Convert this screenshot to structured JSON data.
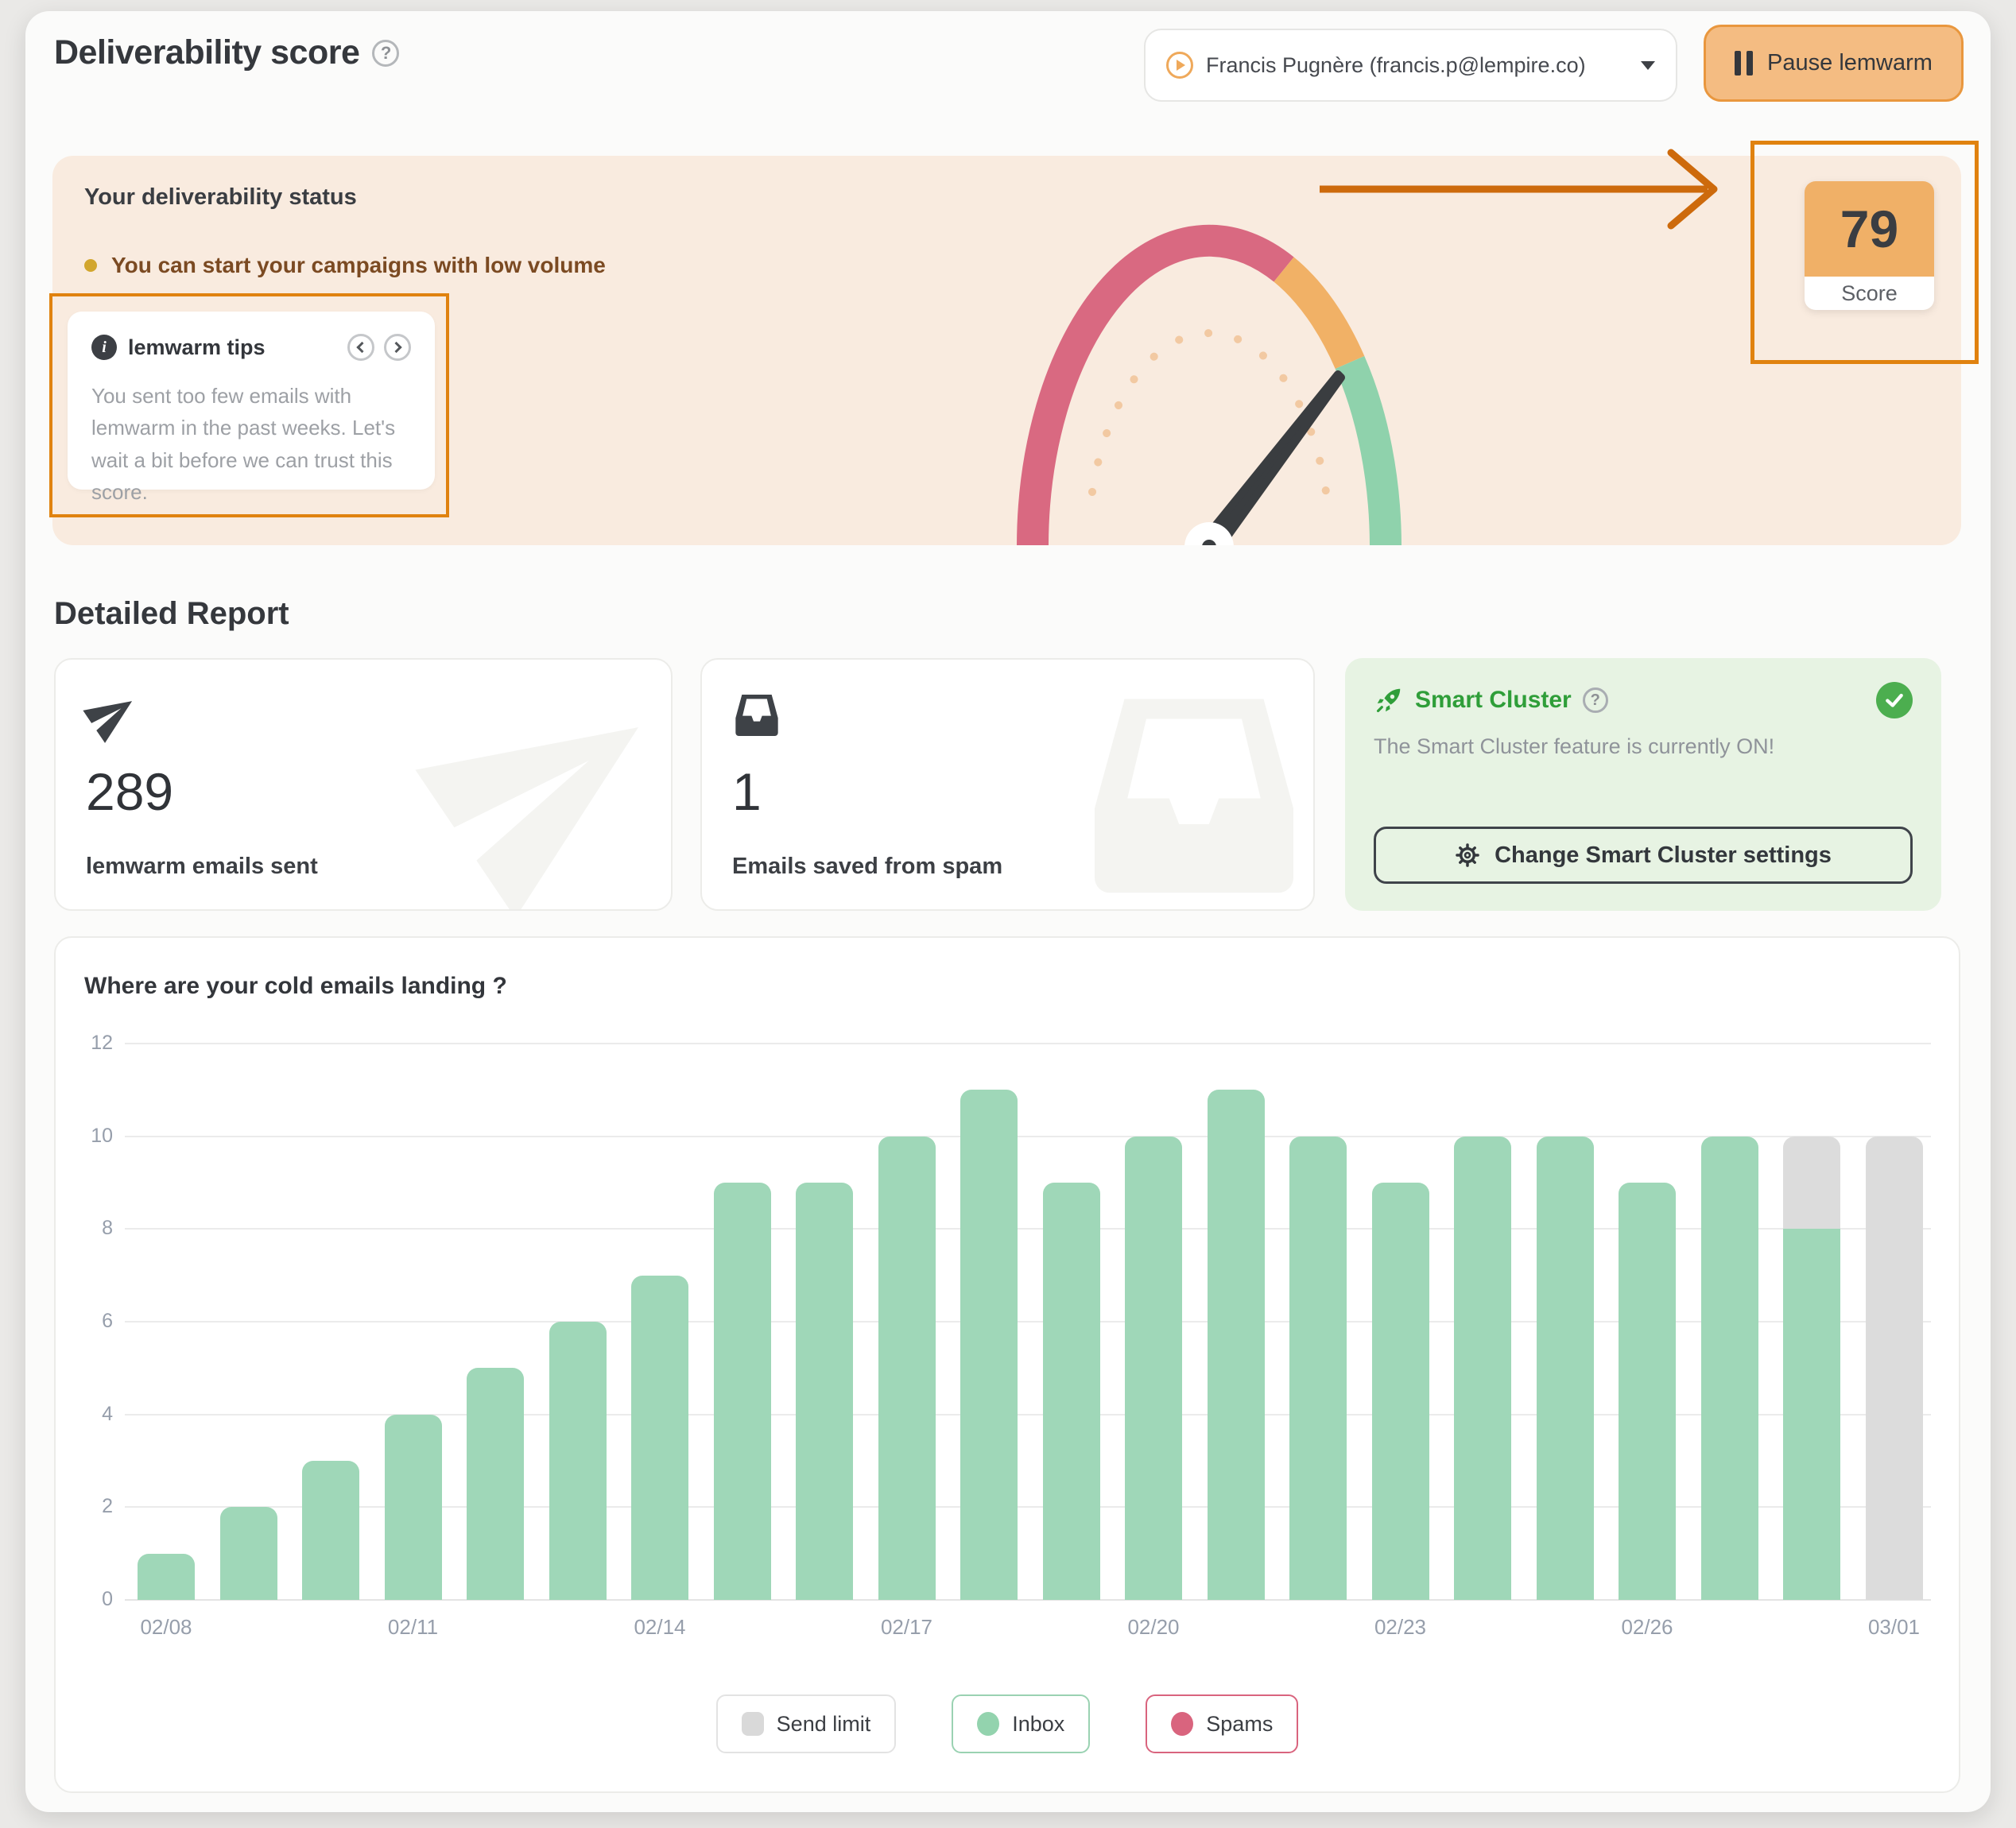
{
  "header": {
    "title": "Deliverability score",
    "account_label": "Francis Pugnère (francis.p@lempire.co)",
    "pause_label": "Pause lemwarm"
  },
  "status_banner": {
    "title": "Your deliverability status",
    "status_text": "You can start your campaigns with low volume",
    "status_dot_color": "#d2a62e",
    "tips": {
      "title": "lemwarm tips",
      "body": "You sent too few emails with lemwarm in the past weeks. Let's wait a bit before we can trust this score."
    },
    "gauge": {
      "score": "79",
      "score_label": "Score",
      "segment_colors": {
        "spam": "#d96981",
        "warning": "#f1b166",
        "good": "#8fd2ac"
      },
      "score_tile_color": "#f0b067"
    }
  },
  "detailed_report": {
    "title": "Detailed Report",
    "cards": [
      {
        "icon": "paper-plane",
        "value": "289",
        "label": "lemwarm emails sent"
      },
      {
        "icon": "inbox-tray",
        "value": "1",
        "label": "Emails saved from spam"
      }
    ],
    "smart_cluster": {
      "title": "Smart Cluster",
      "status_text": "The Smart Cluster feature is currently ON!",
      "button_label": "Change Smart Cluster settings",
      "accent_color": "#2f9e39"
    }
  },
  "chart_data": {
    "type": "bar",
    "stacked": true,
    "title": "Where are your cold emails landing ?",
    "categories": [
      "02/08",
      "02/09",
      "02/10",
      "02/11",
      "02/12",
      "02/13",
      "02/14",
      "02/15",
      "02/16",
      "02/17",
      "02/18",
      "02/19",
      "02/20",
      "02/21",
      "02/22",
      "02/23",
      "02/24",
      "02/25",
      "02/26",
      "02/27",
      "02/28",
      "03/01"
    ],
    "x_tick_labels": [
      "02/08",
      "02/11",
      "02/14",
      "02/17",
      "02/20",
      "02/23",
      "02/26",
      "03/01"
    ],
    "series": [
      {
        "name": "Inbox",
        "color": "#9fd7b8",
        "values": [
          1,
          2,
          3,
          4,
          5,
          6,
          7,
          9,
          9,
          10,
          11,
          9,
          10,
          11,
          10,
          9,
          10,
          10,
          9,
          10,
          8,
          0
        ]
      },
      {
        "name": "Send limit",
        "color": "#dcdcdc",
        "values": [
          0,
          0,
          0,
          0,
          0,
          0,
          0,
          0,
          0,
          0,
          0,
          0,
          0,
          0,
          0,
          0,
          0,
          0,
          0,
          0,
          2,
          10
        ]
      },
      {
        "name": "Spams",
        "color": "#d9647e",
        "values": [
          0,
          0,
          0,
          0,
          0,
          0,
          0,
          0,
          0,
          0,
          0,
          0,
          0,
          0,
          0,
          0,
          0,
          0,
          0,
          0,
          0,
          0
        ]
      }
    ],
    "ylim": [
      0,
      12
    ],
    "yticks": [
      0,
      2,
      4,
      6,
      8,
      10,
      12
    ],
    "grid": true,
    "legend_position": "bottom",
    "legend": [
      {
        "label": "Send limit",
        "swatch_color": "#d9d9d9",
        "border_color": "#e3e3e3",
        "shape": "square"
      },
      {
        "label": "Inbox",
        "swatch_color": "#93d3ae",
        "border_color": "#9ad2b2",
        "shape": "circle"
      },
      {
        "label": "Spams",
        "swatch_color": "#d9647e",
        "border_color": "#d9647e",
        "shape": "circle"
      }
    ]
  }
}
